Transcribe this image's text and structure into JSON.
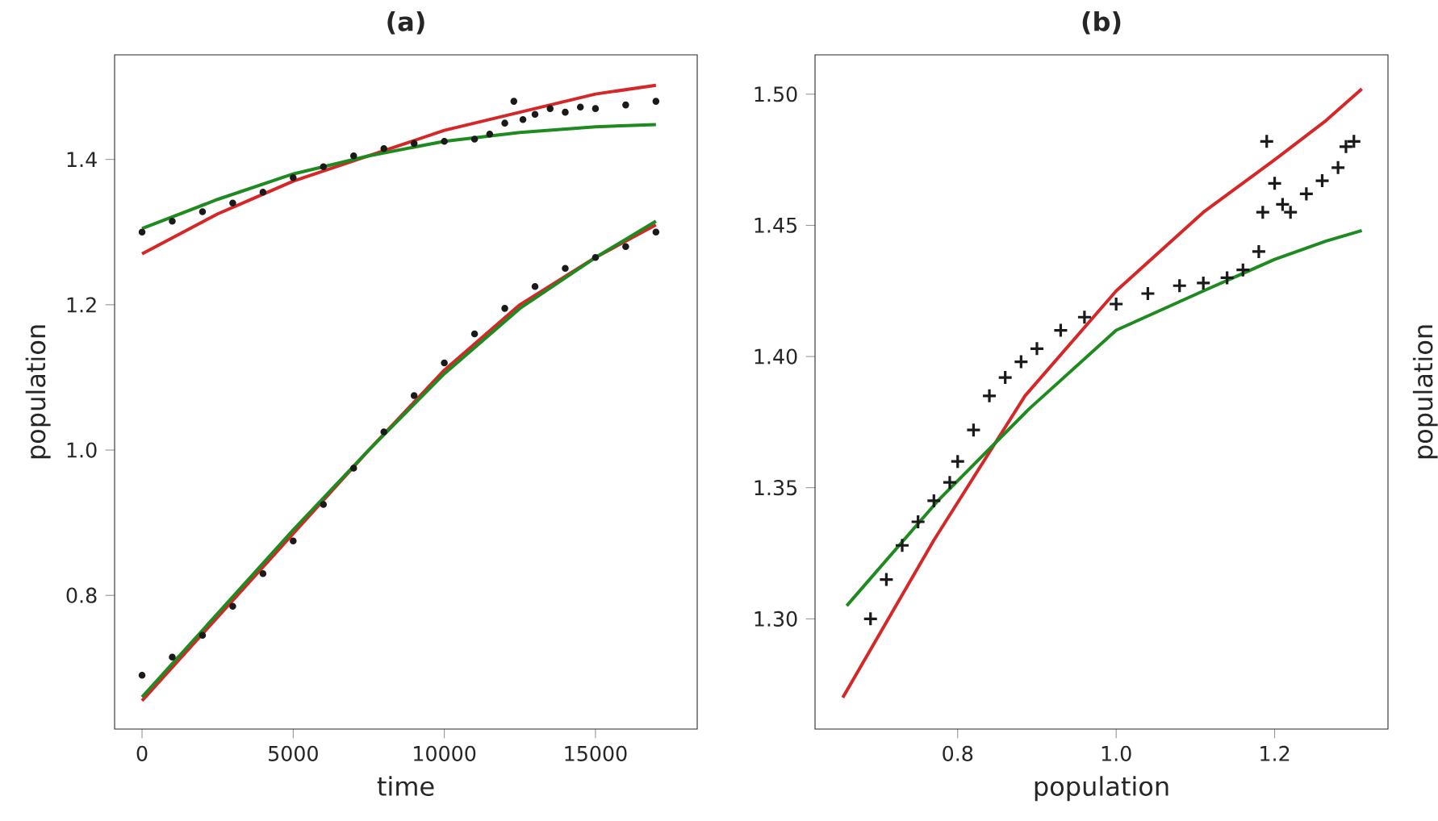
{
  "chart_data": [
    {
      "type": "line",
      "title": "(a)",
      "xlabel": "time",
      "ylabel": "population",
      "xlim": [
        -908,
        18366
      ],
      "ylim": [
        0.616,
        1.544
      ],
      "xticks": [
        0,
        5000,
        10000,
        15000
      ],
      "yticks": [
        {
          "value": 0.8,
          "label": "0.8"
        },
        {
          "value": 1.0,
          "label": "1.0"
        },
        {
          "value": 1.2,
          "label": "1.2"
        },
        {
          "value": 1.4,
          "label": "1.4"
        }
      ],
      "series": [
        {
          "type": "scatter",
          "marker": "circle",
          "color": "#1a1a1a",
          "x": [
            0,
            1000,
            2000,
            3000,
            4000,
            5000,
            6000,
            7000,
            8000,
            9000,
            10000,
            11000,
            11500,
            12000,
            12300,
            12600,
            13000,
            13500,
            14000,
            14500,
            15000,
            16000,
            17000
          ],
          "values": [
            1.3,
            1.315,
            1.328,
            1.34,
            1.355,
            1.375,
            1.39,
            1.405,
            1.415,
            1.422,
            1.425,
            1.428,
            1.435,
            1.45,
            1.48,
            1.455,
            1.462,
            1.47,
            1.465,
            1.472,
            1.47,
            1.475,
            1.48
          ]
        },
        {
          "type": "scatter",
          "marker": "circle",
          "color": "#1a1a1a",
          "x": [
            0,
            1000,
            2000,
            3000,
            4000,
            5000,
            6000,
            7000,
            8000,
            9000,
            10000,
            11000,
            12000,
            13000,
            14000,
            15000,
            16000,
            17000
          ],
          "values": [
            0.69,
            0.715,
            0.745,
            0.785,
            0.83,
            0.875,
            0.925,
            0.975,
            1.025,
            1.075,
            1.12,
            1.16,
            1.195,
            1.225,
            1.25,
            1.265,
            1.28,
            1.3
          ]
        },
        {
          "marker": "none",
          "color": "#d62728",
          "x": [
            0,
            2500,
            5000,
            7500,
            10000,
            12500,
            15000,
            17000
          ],
          "values": [
            1.27,
            1.325,
            1.37,
            1.405,
            1.44,
            1.465,
            1.49,
            1.502
          ]
        },
        {
          "marker": "none",
          "color": "#1f8a1f",
          "x": [
            0,
            2500,
            5000,
            7500,
            10000,
            12500,
            15000,
            17000
          ],
          "values": [
            1.305,
            1.345,
            1.38,
            1.405,
            1.425,
            1.437,
            1.445,
            1.448
          ]
        },
        {
          "marker": "none",
          "color": "#d62728",
          "x": [
            0,
            2500,
            5000,
            7500,
            10000,
            12500,
            15000,
            17000
          ],
          "values": [
            0.655,
            0.77,
            0.885,
            1.0,
            1.11,
            1.2,
            1.265,
            1.31
          ]
        },
        {
          "marker": "none",
          "color": "#1f8a1f",
          "x": [
            0,
            2500,
            5000,
            7500,
            10000,
            12500,
            15000,
            17000
          ],
          "values": [
            0.66,
            0.775,
            0.89,
            1.0,
            1.105,
            1.195,
            1.265,
            1.315
          ]
        }
      ]
    },
    {
      "type": "scatter",
      "title": "(b)",
      "xlabel": "population",
      "ylabel": "population",
      "xlim": [
        0.62,
        1.343
      ],
      "ylim": [
        1.258,
        1.515
      ],
      "xticks": [
        {
          "value": 0.8,
          "label": "0.8"
        },
        {
          "value": 1.0,
          "label": "1.0"
        },
        {
          "value": 1.2,
          "label": "1.2"
        }
      ],
      "yticks": [
        {
          "value": 1.3,
          "label": "1.30"
        },
        {
          "value": 1.35,
          "label": "1.35"
        },
        {
          "value": 1.4,
          "label": "1.40"
        },
        {
          "value": 1.45,
          "label": "1.45"
        },
        {
          "value": 1.5,
          "label": "1.50"
        }
      ],
      "series": [
        {
          "marker": "cross",
          "color": "#1a1a1a",
          "x": [
            0.69,
            0.71,
            0.73,
            0.75,
            0.77,
            0.79,
            0.8,
            0.82,
            0.84,
            0.86,
            0.88,
            0.9,
            0.93,
            0.96,
            1.0,
            1.04,
            1.08,
            1.11,
            1.14,
            1.16,
            1.18,
            1.185,
            1.19,
            1.2,
            1.21,
            1.22,
            1.24,
            1.26,
            1.28,
            1.29,
            1.3
          ],
          "values": [
            1.3,
            1.315,
            1.328,
            1.337,
            1.345,
            1.352,
            1.36,
            1.372,
            1.385,
            1.392,
            1.398,
            1.403,
            1.41,
            1.415,
            1.42,
            1.424,
            1.427,
            1.428,
            1.43,
            1.433,
            1.44,
            1.455,
            1.482,
            1.466,
            1.458,
            1.455,
            1.462,
            1.467,
            1.472,
            1.48,
            1.482
          ]
        },
        {
          "type": "line",
          "marker": "none",
          "color": "#d62728",
          "x": [
            0.655,
            0.77,
            0.885,
            1.0,
            1.11,
            1.2,
            1.265,
            1.31
          ],
          "values": [
            1.27,
            1.33,
            1.385,
            1.425,
            1.455,
            1.475,
            1.49,
            1.502
          ]
        },
        {
          "type": "line",
          "marker": "none",
          "color": "#1f8a1f",
          "x": [
            0.66,
            0.775,
            0.89,
            1.0,
            1.11,
            1.2,
            1.265,
            1.31
          ],
          "values": [
            1.305,
            1.345,
            1.38,
            1.41,
            1.425,
            1.437,
            1.444,
            1.448
          ]
        }
      ]
    }
  ]
}
